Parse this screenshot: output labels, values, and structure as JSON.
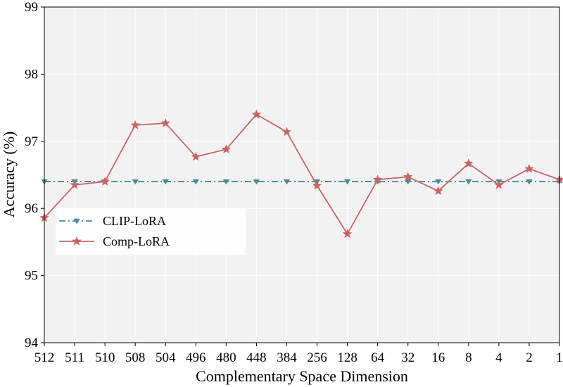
{
  "chart_data": {
    "type": "line",
    "title": "",
    "xlabel": "Complementary Space Dimension",
    "ylabel": "Accuracy (%)",
    "categories": [
      "512",
      "511",
      "510",
      "508",
      "504",
      "496",
      "480",
      "448",
      "384",
      "256",
      "128",
      "64",
      "32",
      "16",
      "8",
      "4",
      "2",
      "1"
    ],
    "ylim": [
      94,
      99
    ],
    "yticks": [
      94,
      95,
      96,
      97,
      98,
      99
    ],
    "grid": true,
    "legend_position": "center-left",
    "series": [
      {
        "name": "CLIP-LoRA",
        "color": "#4a8a9e",
        "line_style": "dashdot",
        "marker": "triangle-down",
        "values": [
          96.4,
          96.4,
          96.4,
          96.4,
          96.4,
          96.4,
          96.4,
          96.4,
          96.4,
          96.4,
          96.4,
          96.4,
          96.4,
          96.4,
          96.4,
          96.4,
          96.4,
          96.4
        ]
      },
      {
        "name": "Comp-LoRA",
        "color": "#c96565",
        "line_style": "solid",
        "marker": "star",
        "values": [
          95.86,
          96.35,
          96.4,
          97.24,
          97.27,
          96.77,
          96.88,
          97.4,
          97.14,
          96.34,
          95.62,
          96.43,
          96.47,
          96.26,
          96.67,
          96.35,
          96.59,
          96.43
        ]
      }
    ]
  }
}
